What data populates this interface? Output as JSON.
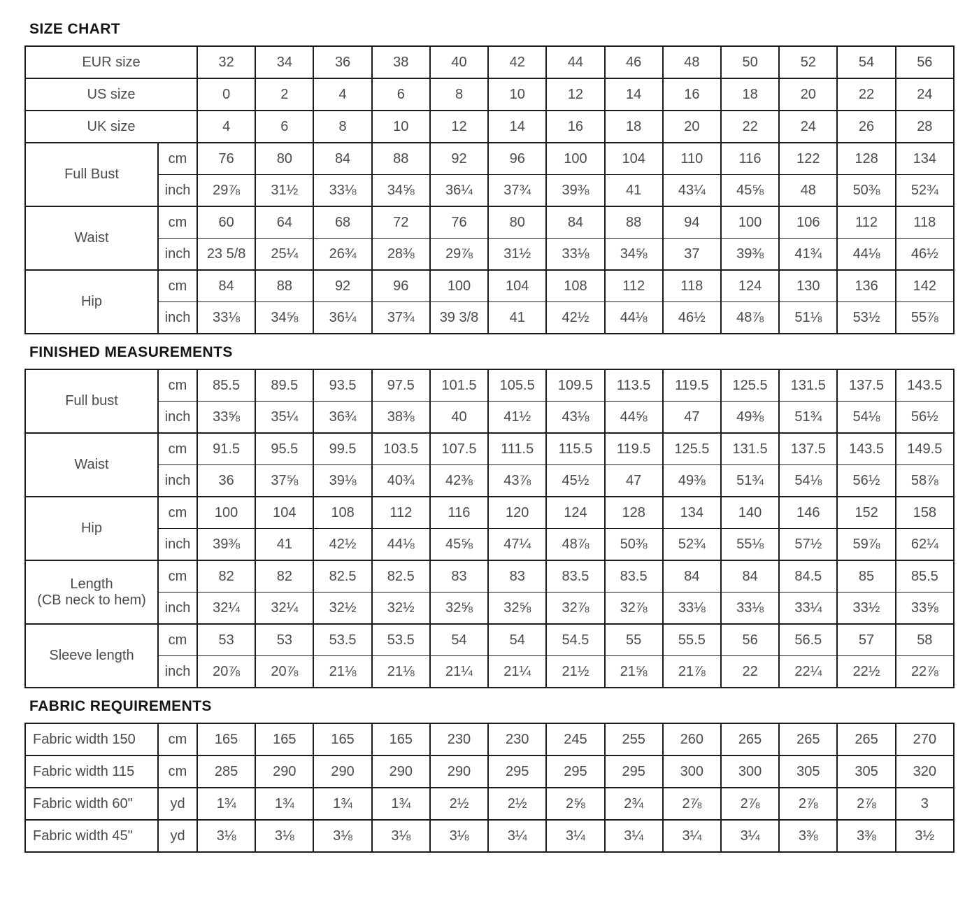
{
  "sections": [
    {
      "title": "SIZE CHART",
      "groups": [
        {
          "label": "EUR size",
          "rows": [
            {
              "unit": null,
              "values": [
                "32",
                "34",
                "36",
                "38",
                "40",
                "42",
                "44",
                "46",
                "48",
                "50",
                "52",
                "54",
                "56"
              ]
            }
          ]
        },
        {
          "label": "US size",
          "rows": [
            {
              "unit": null,
              "values": [
                "0",
                "2",
                "4",
                "6",
                "8",
                "10",
                "12",
                "14",
                "16",
                "18",
                "20",
                "22",
                "24"
              ]
            }
          ]
        },
        {
          "label": "UK size",
          "rows": [
            {
              "unit": null,
              "values": [
                "4",
                "6",
                "8",
                "10",
                "12",
                "14",
                "16",
                "18",
                "20",
                "22",
                "24",
                "26",
                "28"
              ]
            }
          ]
        },
        {
          "label": "Full Bust",
          "rows": [
            {
              "unit": "cm",
              "values": [
                "76",
                "80",
                "84",
                "88",
                "92",
                "96",
                "100",
                "104",
                "110",
                "116",
                "122",
                "128",
                "134"
              ]
            },
            {
              "unit": "inch",
              "values": [
                "29⅞",
                "31½",
                "33⅛",
                "34⅝",
                "36¼",
                "37¾",
                "39⅜",
                "41",
                "43¼",
                "45⅝",
                "48",
                "50⅜",
                "52¾"
              ]
            }
          ]
        },
        {
          "label": "Waist",
          "rows": [
            {
              "unit": "cm",
              "values": [
                "60",
                "64",
                "68",
                "72",
                "76",
                "80",
                "84",
                "88",
                "94",
                "100",
                "106",
                "112",
                "118"
              ]
            },
            {
              "unit": "inch",
              "values": [
                "23 5/8",
                "25¼",
                "26¾",
                "28⅜",
                "29⅞",
                "31½",
                "33⅛",
                "34⅝",
                "37",
                "39⅜",
                "41¾",
                "44⅛",
                "46½"
              ]
            }
          ]
        },
        {
          "label": "Hip",
          "rows": [
            {
              "unit": "cm",
              "values": [
                "84",
                "88",
                "92",
                "96",
                "100",
                "104",
                "108",
                "112",
                "118",
                "124",
                "130",
                "136",
                "142"
              ]
            },
            {
              "unit": "inch",
              "values": [
                "33⅛",
                "34⅝",
                "36¼",
                "37¾",
                "39 3/8",
                "41",
                "42½",
                "44⅛",
                "46½",
                "48⅞",
                "51⅛",
                "53½",
                "55⅞"
              ]
            }
          ]
        }
      ]
    },
    {
      "title": "FINISHED MEASUREMENTS",
      "groups": [
        {
          "label": "Full bust",
          "rows": [
            {
              "unit": "cm",
              "values": [
                "85.5",
                "89.5",
                "93.5",
                "97.5",
                "101.5",
                "105.5",
                "109.5",
                "113.5",
                "119.5",
                "125.5",
                "131.5",
                "137.5",
                "143.5"
              ]
            },
            {
              "unit": "inch",
              "values": [
                "33⅝",
                "35¼",
                "36¾",
                "38⅜",
                "40",
                "41½",
                "43⅛",
                "44⅝",
                "47",
                "49⅜",
                "51¾",
                "54⅛",
                "56½"
              ]
            }
          ]
        },
        {
          "label": "Waist",
          "rows": [
            {
              "unit": "cm",
              "values": [
                "91.5",
                "95.5",
                "99.5",
                "103.5",
                "107.5",
                "111.5",
                "115.5",
                "119.5",
                "125.5",
                "131.5",
                "137.5",
                "143.5",
                "149.5"
              ]
            },
            {
              "unit": "inch",
              "values": [
                "36",
                "37⅝",
                "39⅛",
                "40¾",
                "42⅜",
                "43⅞",
                "45½",
                "47",
                "49⅜",
                "51¾",
                "54⅛",
                "56½",
                "58⅞"
              ]
            }
          ]
        },
        {
          "label": "Hip",
          "rows": [
            {
              "unit": "cm",
              "values": [
                "100",
                "104",
                "108",
                "112",
                "116",
                "120",
                "124",
                "128",
                "134",
                "140",
                "146",
                "152",
                "158"
              ]
            },
            {
              "unit": "inch",
              "values": [
                "39⅜",
                "41",
                "42½",
                "44⅛",
                "45⅝",
                "47¼",
                "48⅞",
                "50⅜",
                "52¾",
                "55⅛",
                "57½",
                "59⅞",
                "62¼"
              ]
            }
          ]
        },
        {
          "label": "Length\n(CB neck to hem)",
          "rows": [
            {
              "unit": "cm",
              "values": [
                "82",
                "82",
                "82.5",
                "82.5",
                "83",
                "83",
                "83.5",
                "83.5",
                "84",
                "84",
                "84.5",
                "85",
                "85.5"
              ]
            },
            {
              "unit": "inch",
              "values": [
                "32¼",
                "32¼",
                "32½",
                "32½",
                "32⅝",
                "32⅝",
                "32⅞",
                "32⅞",
                "33⅛",
                "33⅛",
                "33¼",
                "33½",
                "33⅝"
              ]
            }
          ]
        },
        {
          "label": "Sleeve length",
          "rows": [
            {
              "unit": "cm",
              "values": [
                "53",
                "53",
                "53.5",
                "53.5",
                "54",
                "54",
                "54.5",
                "55",
                "55.5",
                "56",
                "56.5",
                "57",
                "58"
              ]
            },
            {
              "unit": "inch",
              "values": [
                "20⅞",
                "20⅞",
                "21⅛",
                "21⅛",
                "21¼",
                "21¼",
                "21½",
                "21⅝",
                "21⅞",
                "22",
                "22¼",
                "22½",
                "22⅞"
              ]
            }
          ]
        }
      ]
    },
    {
      "title": "FABRIC REQUIREMENTS",
      "label_align": "left",
      "groups": [
        {
          "label": "Fabric width 150",
          "rows": [
            {
              "unit": "cm",
              "values": [
                "165",
                "165",
                "165",
                "165",
                "230",
                "230",
                "245",
                "255",
                "260",
                "265",
                "265",
                "265",
                "270"
              ]
            }
          ]
        },
        {
          "label": "Fabric width 115",
          "rows": [
            {
              "unit": "cm",
              "values": [
                "285",
                "290",
                "290",
                "290",
                "290",
                "295",
                "295",
                "295",
                "300",
                "300",
                "305",
                "305",
                "320"
              ]
            }
          ]
        },
        {
          "label": "Fabric width 60\"",
          "rows": [
            {
              "unit": "yd",
              "values": [
                "1¾",
                "1¾",
                "1¾",
                "1¾",
                "2½",
                "2½",
                "2⅝",
                "2¾",
                "2⅞",
                "2⅞",
                "2⅞",
                "2⅞",
                "3"
              ]
            }
          ]
        },
        {
          "label": "Fabric width 45\"",
          "rows": [
            {
              "unit": "yd",
              "values": [
                "3⅛",
                "3⅛",
                "3⅛",
                "3⅛",
                "3⅛",
                "3¼",
                "3¼",
                "3¼",
                "3¼",
                "3¼",
                "3⅜",
                "3⅜",
                "3½"
              ]
            }
          ]
        }
      ]
    }
  ],
  "layout_hint": {
    "columns": 13,
    "border_color": "#1c1c1c",
    "text_color": "#4b4b4b",
    "heading_color": "#161616"
  }
}
